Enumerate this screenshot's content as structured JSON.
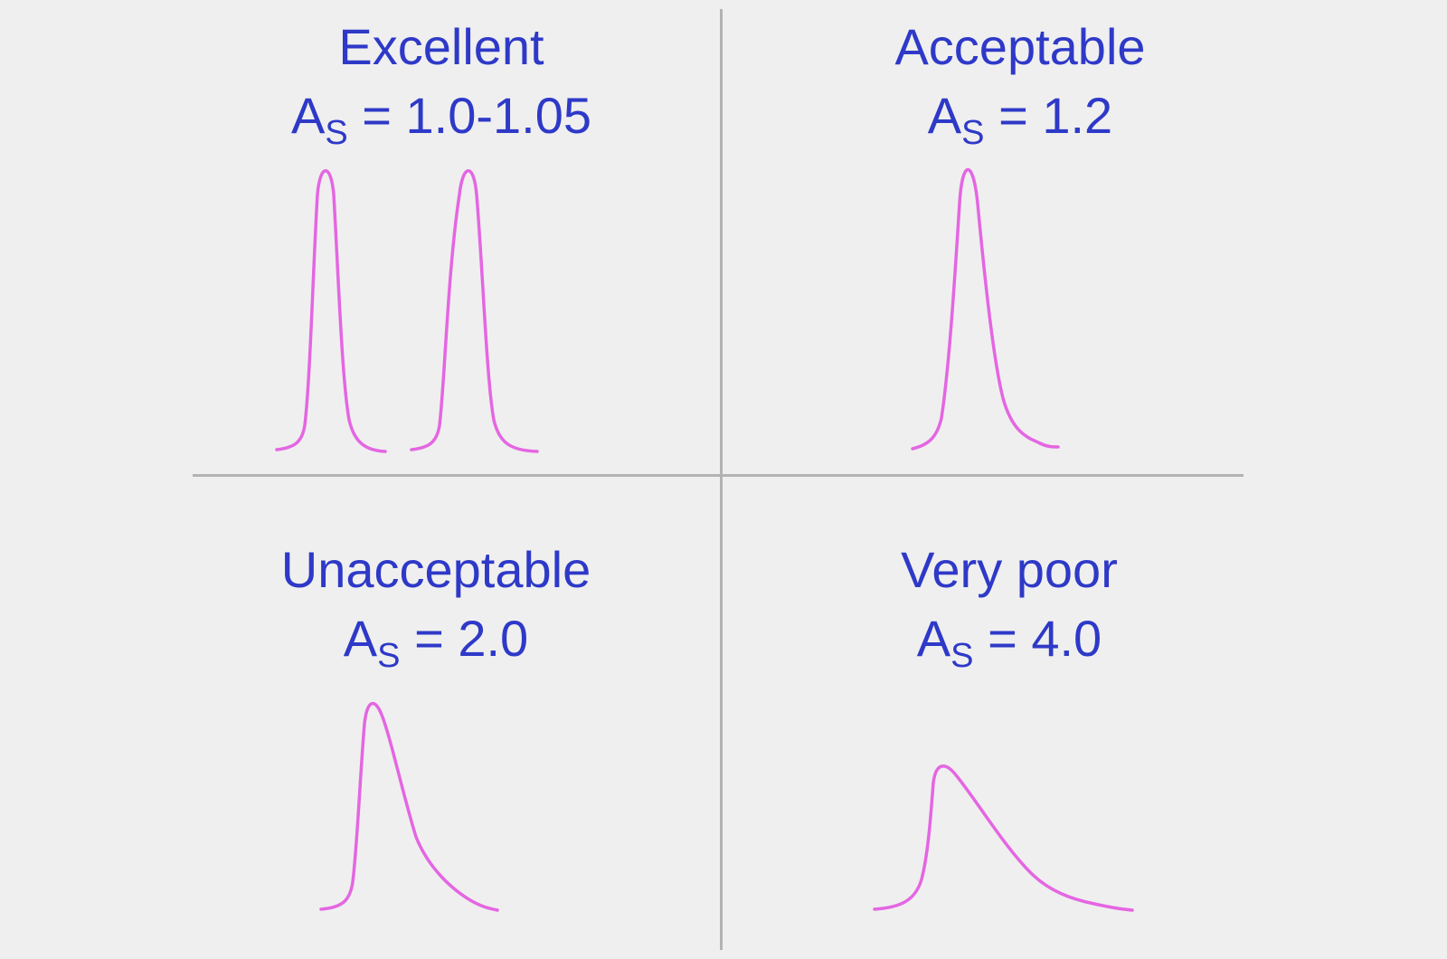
{
  "panels": [
    {
      "title": "Excellent",
      "formula_base": "A",
      "formula_sub": "S",
      "formula_value": "= 1.0-1.05"
    },
    {
      "title": "Acceptable",
      "formula_base": "A",
      "formula_sub": "S",
      "formula_value": "= 1.2"
    },
    {
      "title": "Unacceptable",
      "formula_base": "A",
      "formula_sub": "S",
      "formula_value": "= 2.0"
    },
    {
      "title": "Very poor",
      "formula_base": "A",
      "formula_sub": "S",
      "formula_value": "= 4.0"
    }
  ],
  "colors": {
    "text": "#2e39c8",
    "peak": "#e466e2",
    "divider": "#b3b3b3",
    "background": "#efefef"
  }
}
